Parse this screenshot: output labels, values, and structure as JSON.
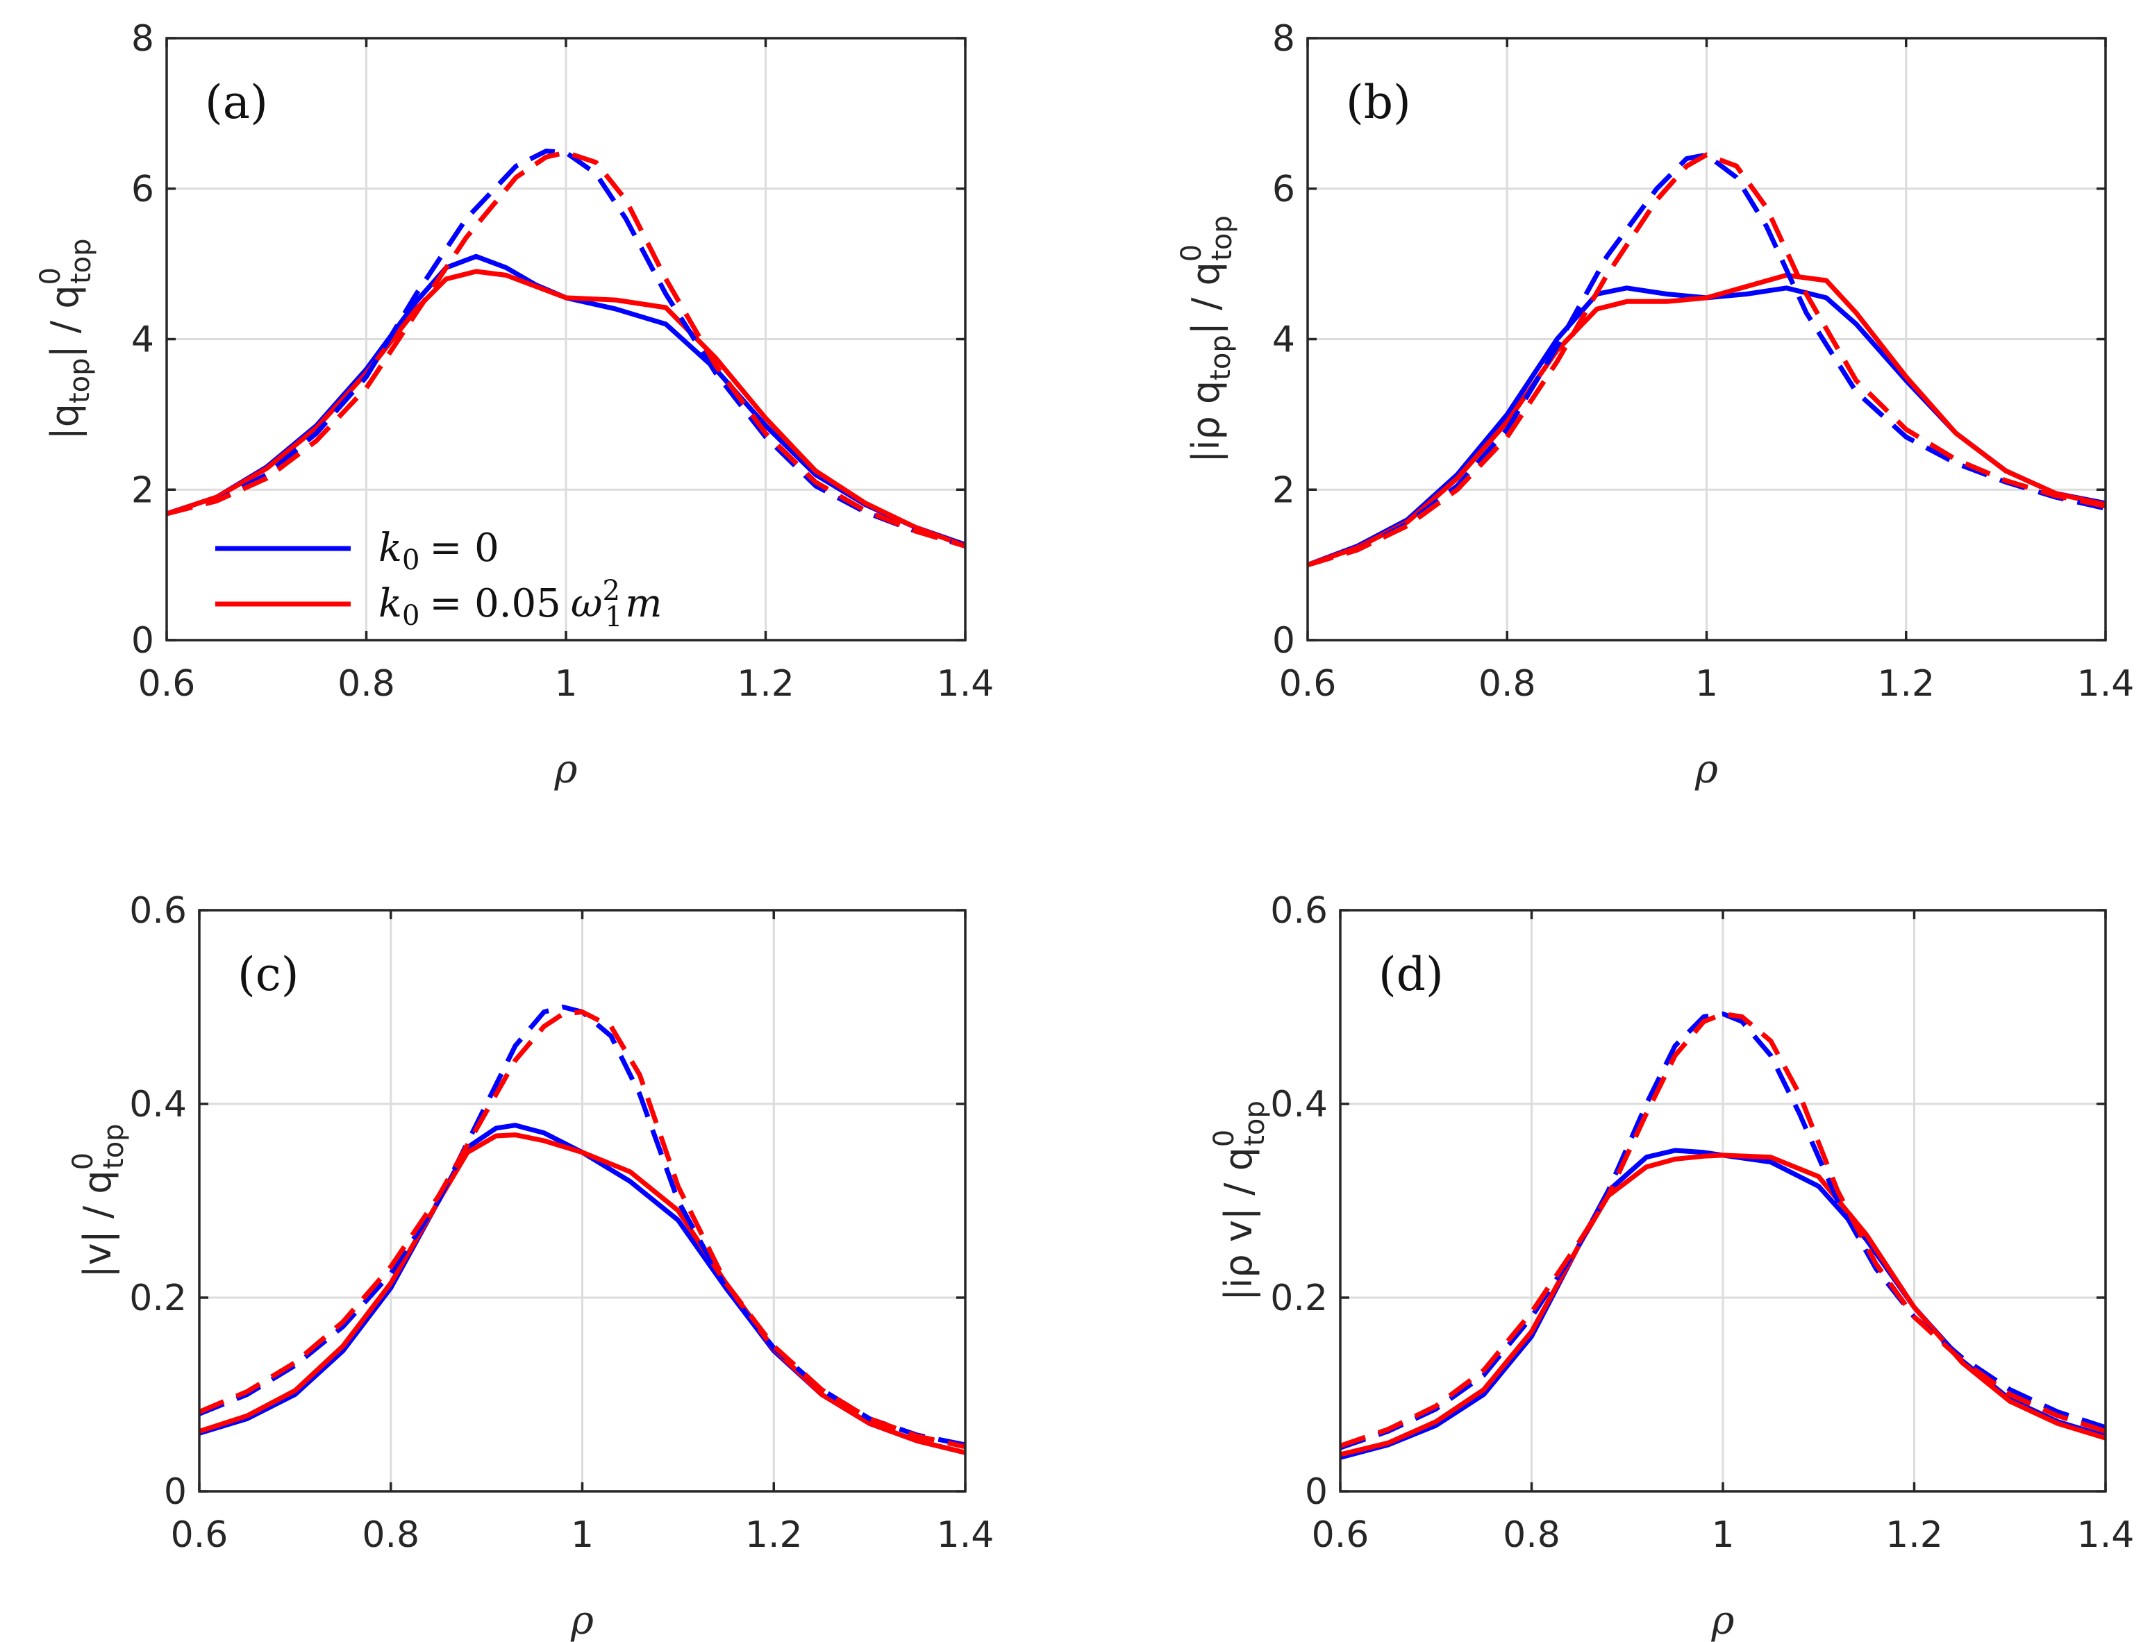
{
  "figure": {
    "colors": {
      "blue": "#0000ff",
      "red": "#ff0000"
    },
    "legend": {
      "entries": [
        {
          "lhs": "k",
          "sub": "0",
          "rhs": "= 0",
          "color": "#0000ff"
        },
        {
          "lhs": "k",
          "sub": "0",
          "rhs": "= 0.05",
          "omega": "ω",
          "omega_sub": "1",
          "omega_sup": "2",
          "tail": "m",
          "color": "#ff0000"
        }
      ]
    }
  },
  "chart_data": [
    {
      "type": "line",
      "panel_label": "(a)",
      "title": "",
      "xlabel": "ρ",
      "ylabel": {
        "pre": "|q",
        "sub": "top",
        "mid": "| / q",
        "sup": "0",
        "sub2": "top"
      },
      "xlim": [
        0.6,
        1.4
      ],
      "ylim": [
        0,
        8
      ],
      "xticks": [
        "0.6",
        "0.8",
        "1",
        "1.2",
        "1.4"
      ],
      "yticks": [
        "0",
        "2",
        "4",
        "6",
        "8"
      ],
      "grid": true,
      "series": [
        {
          "name": "k0 = 0 (solid)",
          "color": "#0000ff",
          "style": "solid",
          "x": [
            0.6,
            0.65,
            0.7,
            0.75,
            0.8,
            0.85,
            0.88,
            0.91,
            0.94,
            0.97,
            1.0,
            1.05,
            1.1,
            1.15,
            1.2,
            1.25,
            1.3,
            1.35,
            1.4
          ],
          "y": [
            1.68,
            1.9,
            2.3,
            2.85,
            3.6,
            4.5,
            4.95,
            5.1,
            4.95,
            4.72,
            4.55,
            4.4,
            4.2,
            3.6,
            2.85,
            2.2,
            1.8,
            1.5,
            1.27
          ]
        },
        {
          "name": "k0 = 0.05 ω1² m (solid)",
          "color": "#ff0000",
          "style": "solid",
          "x": [
            0.6,
            0.65,
            0.7,
            0.75,
            0.8,
            0.85,
            0.88,
            0.91,
            0.94,
            0.97,
            1.0,
            1.05,
            1.1,
            1.15,
            1.2,
            1.25,
            1.3,
            1.35,
            1.4
          ],
          "y": [
            1.68,
            1.9,
            2.28,
            2.82,
            3.55,
            4.4,
            4.8,
            4.9,
            4.85,
            4.7,
            4.55,
            4.52,
            4.42,
            3.75,
            2.95,
            2.25,
            1.82,
            1.5,
            1.25
          ]
        },
        {
          "name": "k0 = 0 (dashed)",
          "color": "#0000ff",
          "style": "dashed",
          "x": [
            0.6,
            0.65,
            0.7,
            0.75,
            0.8,
            0.85,
            0.9,
            0.95,
            0.98,
            1.0,
            1.03,
            1.06,
            1.1,
            1.15,
            1.2,
            1.25,
            1.3,
            1.35,
            1.4
          ],
          "y": [
            1.68,
            1.85,
            2.2,
            2.75,
            3.5,
            4.6,
            5.6,
            6.3,
            6.5,
            6.48,
            6.2,
            5.6,
            4.6,
            3.55,
            2.7,
            2.05,
            1.7,
            1.45,
            1.25
          ]
        },
        {
          "name": "k0 = 0.05 ω1² m (dashed)",
          "color": "#ff0000",
          "style": "dashed",
          "x": [
            0.6,
            0.65,
            0.7,
            0.75,
            0.8,
            0.85,
            0.9,
            0.95,
            0.98,
            1.0,
            1.03,
            1.06,
            1.1,
            1.15,
            1.2,
            1.25,
            1.3,
            1.35,
            1.4
          ],
          "y": [
            1.68,
            1.85,
            2.15,
            2.65,
            3.35,
            4.35,
            5.35,
            6.15,
            6.42,
            6.48,
            6.35,
            5.85,
            4.8,
            3.65,
            2.75,
            2.1,
            1.72,
            1.45,
            1.25
          ]
        }
      ]
    },
    {
      "type": "line",
      "panel_label": "(b)",
      "title": "",
      "xlabel": "ρ",
      "ylabel": {
        "pre": "|iρ q",
        "sub": "top",
        "mid": "| / q",
        "sup": "0",
        "sub2": "top"
      },
      "xlim": [
        0.6,
        1.4
      ],
      "ylim": [
        0,
        8
      ],
      "xticks": [
        "0.6",
        "0.8",
        "1",
        "1.2",
        "1.4"
      ],
      "yticks": [
        "0",
        "2",
        "4",
        "6",
        "8"
      ],
      "grid": true,
      "series": [
        {
          "name": "k0 = 0 (solid)",
          "color": "#0000ff",
          "style": "solid",
          "x": [
            0.6,
            0.65,
            0.7,
            0.75,
            0.8,
            0.85,
            0.89,
            0.92,
            0.96,
            1.0,
            1.04,
            1.08,
            1.12,
            1.15,
            1.2,
            1.25,
            1.3,
            1.35,
            1.4
          ],
          "y": [
            1.0,
            1.25,
            1.6,
            2.2,
            3.0,
            4.0,
            4.6,
            4.68,
            4.6,
            4.55,
            4.6,
            4.68,
            4.55,
            4.2,
            3.45,
            2.75,
            2.25,
            1.95,
            1.82
          ]
        },
        {
          "name": "k0 = 0.05 ω1² m (solid)",
          "color": "#ff0000",
          "style": "solid",
          "x": [
            0.6,
            0.65,
            0.7,
            0.75,
            0.8,
            0.85,
            0.89,
            0.92,
            0.96,
            1.0,
            1.04,
            1.08,
            1.12,
            1.15,
            1.2,
            1.25,
            1.3,
            1.35,
            1.4
          ],
          "y": [
            1.0,
            1.23,
            1.57,
            2.15,
            2.9,
            3.85,
            4.4,
            4.5,
            4.5,
            4.55,
            4.7,
            4.85,
            4.78,
            4.35,
            3.5,
            2.75,
            2.25,
            1.95,
            1.8
          ]
        },
        {
          "name": "k0 = 0 (dashed)",
          "color": "#0000ff",
          "style": "dashed",
          "x": [
            0.6,
            0.65,
            0.7,
            0.75,
            0.8,
            0.85,
            0.9,
            0.95,
            0.98,
            1.0,
            1.03,
            1.06,
            1.1,
            1.15,
            1.2,
            1.25,
            1.3,
            1.35,
            1.4
          ],
          "y": [
            1.0,
            1.2,
            1.55,
            2.05,
            2.8,
            3.9,
            5.1,
            6.0,
            6.4,
            6.45,
            6.15,
            5.5,
            4.35,
            3.3,
            2.7,
            2.35,
            2.1,
            1.9,
            1.75
          ]
        },
        {
          "name": "k0 = 0.05 ω1² m (dashed)",
          "color": "#ff0000",
          "style": "dashed",
          "x": [
            0.6,
            0.65,
            0.7,
            0.75,
            0.8,
            0.85,
            0.9,
            0.95,
            0.98,
            1.0,
            1.03,
            1.06,
            1.1,
            1.15,
            1.2,
            1.25,
            1.3,
            1.35,
            1.4
          ],
          "y": [
            1.0,
            1.2,
            1.52,
            2.0,
            2.7,
            3.7,
            4.85,
            5.85,
            6.3,
            6.45,
            6.3,
            5.75,
            4.6,
            3.45,
            2.8,
            2.4,
            2.12,
            1.92,
            1.78
          ]
        }
      ]
    },
    {
      "type": "line",
      "panel_label": "(c)",
      "title": "",
      "xlabel": "ρ",
      "ylabel": {
        "pre": "|v",
        "sub": "",
        "mid": "| / q",
        "sup": "0",
        "sub2": "top"
      },
      "xlim": [
        0.6,
        1.4
      ],
      "ylim": [
        0,
        0.6
      ],
      "xticks": [
        "0.6",
        "0.8",
        "1",
        "1.2",
        "1.4"
      ],
      "yticks": [
        "0",
        "0.2",
        "0.4",
        "0.6"
      ],
      "grid": true,
      "series": [
        {
          "name": "k0 = 0 (solid)",
          "color": "#0000ff",
          "style": "solid",
          "x": [
            0.6,
            0.65,
            0.7,
            0.75,
            0.8,
            0.85,
            0.88,
            0.91,
            0.93,
            0.96,
            1.0,
            1.05,
            1.1,
            1.15,
            1.2,
            1.25,
            1.3,
            1.35,
            1.4
          ],
          "y": [
            0.06,
            0.075,
            0.1,
            0.145,
            0.21,
            0.3,
            0.355,
            0.375,
            0.378,
            0.37,
            0.35,
            0.32,
            0.28,
            0.21,
            0.145,
            0.1,
            0.07,
            0.052,
            0.04
          ]
        },
        {
          "name": "k0 = 0.05 ω1² m (solid)",
          "color": "#ff0000",
          "style": "solid",
          "x": [
            0.6,
            0.65,
            0.7,
            0.75,
            0.8,
            0.85,
            0.88,
            0.91,
            0.93,
            0.96,
            1.0,
            1.05,
            1.1,
            1.15,
            1.2,
            1.25,
            1.3,
            1.35,
            1.4
          ],
          "y": [
            0.062,
            0.078,
            0.104,
            0.15,
            0.215,
            0.3,
            0.35,
            0.367,
            0.368,
            0.362,
            0.35,
            0.33,
            0.29,
            0.215,
            0.147,
            0.1,
            0.07,
            0.052,
            0.04
          ]
        },
        {
          "name": "k0 = 0 (dashed)",
          "color": "#0000ff",
          "style": "dashed",
          "x": [
            0.6,
            0.65,
            0.7,
            0.75,
            0.8,
            0.85,
            0.89,
            0.93,
            0.96,
            0.98,
            1.0,
            1.03,
            1.06,
            1.1,
            1.15,
            1.2,
            1.25,
            1.3,
            1.35,
            1.4
          ],
          "y": [
            0.08,
            0.1,
            0.13,
            0.17,
            0.225,
            0.3,
            0.38,
            0.46,
            0.495,
            0.5,
            0.495,
            0.47,
            0.41,
            0.3,
            0.21,
            0.148,
            0.105,
            0.075,
            0.058,
            0.048
          ]
        },
        {
          "name": "k0 = 0.05 ω1² m (dashed)",
          "color": "#ff0000",
          "style": "dashed",
          "x": [
            0.6,
            0.65,
            0.7,
            0.75,
            0.8,
            0.85,
            0.89,
            0.93,
            0.96,
            0.98,
            1.0,
            1.03,
            1.06,
            1.1,
            1.15,
            1.2,
            1.25,
            1.3,
            1.35,
            1.4
          ],
          "y": [
            0.082,
            0.103,
            0.133,
            0.175,
            0.232,
            0.305,
            0.375,
            0.445,
            0.48,
            0.493,
            0.495,
            0.48,
            0.43,
            0.315,
            0.215,
            0.15,
            0.105,
            0.075,
            0.057,
            0.046
          ]
        }
      ]
    },
    {
      "type": "line",
      "panel_label": "(d)",
      "title": "",
      "xlabel": "ρ",
      "ylabel": {
        "pre": "|iρ v",
        "sub": "",
        "mid": "| / q",
        "sup": "0",
        "sub2": "top"
      },
      "xlim": [
        0.6,
        1.4
      ],
      "ylim": [
        0,
        0.6
      ],
      "xticks": [
        "0.6",
        "0.8",
        "1",
        "1.2",
        "1.4"
      ],
      "yticks": [
        "0",
        "0.2",
        "0.4",
        "0.6"
      ],
      "grid": true,
      "series": [
        {
          "name": "k0 = 0 (solid)",
          "color": "#0000ff",
          "style": "solid",
          "x": [
            0.6,
            0.65,
            0.7,
            0.75,
            0.8,
            0.85,
            0.88,
            0.92,
            0.95,
            0.98,
            1.0,
            1.05,
            1.1,
            1.15,
            1.2,
            1.25,
            1.3,
            1.35,
            1.4
          ],
          "y": [
            0.035,
            0.048,
            0.068,
            0.1,
            0.16,
            0.255,
            0.31,
            0.345,
            0.352,
            0.35,
            0.347,
            0.34,
            0.315,
            0.26,
            0.19,
            0.135,
            0.095,
            0.072,
            0.057
          ]
        },
        {
          "name": "k0 = 0.05 ω1² m (solid)",
          "color": "#ff0000",
          "style": "solid",
          "x": [
            0.6,
            0.65,
            0.7,
            0.75,
            0.8,
            0.85,
            0.88,
            0.92,
            0.95,
            0.98,
            1.0,
            1.05,
            1.1,
            1.15,
            1.2,
            1.25,
            1.3,
            1.35,
            1.4
          ],
          "y": [
            0.038,
            0.05,
            0.072,
            0.105,
            0.165,
            0.255,
            0.305,
            0.335,
            0.343,
            0.346,
            0.347,
            0.345,
            0.325,
            0.265,
            0.19,
            0.133,
            0.093,
            0.07,
            0.055
          ]
        },
        {
          "name": "k0 = 0 (dashed)",
          "color": "#0000ff",
          "style": "dashed",
          "x": [
            0.6,
            0.65,
            0.7,
            0.75,
            0.8,
            0.85,
            0.88,
            0.92,
            0.95,
            0.98,
            1.0,
            1.02,
            1.05,
            1.08,
            1.12,
            1.16,
            1.2,
            1.25,
            1.3,
            1.35,
            1.4
          ],
          "y": [
            0.045,
            0.062,
            0.085,
            0.12,
            0.18,
            0.255,
            0.31,
            0.4,
            0.46,
            0.49,
            0.493,
            0.485,
            0.45,
            0.39,
            0.3,
            0.23,
            0.18,
            0.138,
            0.105,
            0.082,
            0.066
          ]
        },
        {
          "name": "k0 = 0.05 ω1² m (dashed)",
          "color": "#ff0000",
          "style": "dashed",
          "x": [
            0.6,
            0.65,
            0.7,
            0.75,
            0.8,
            0.85,
            0.88,
            0.92,
            0.95,
            0.98,
            1.0,
            1.02,
            1.05,
            1.08,
            1.12,
            1.16,
            1.2,
            1.25,
            1.3,
            1.35,
            1.4
          ],
          "y": [
            0.047,
            0.064,
            0.088,
            0.125,
            0.185,
            0.258,
            0.305,
            0.39,
            0.45,
            0.485,
            0.493,
            0.49,
            0.465,
            0.41,
            0.31,
            0.235,
            0.18,
            0.135,
            0.1,
            0.078,
            0.062
          ]
        }
      ]
    }
  ]
}
